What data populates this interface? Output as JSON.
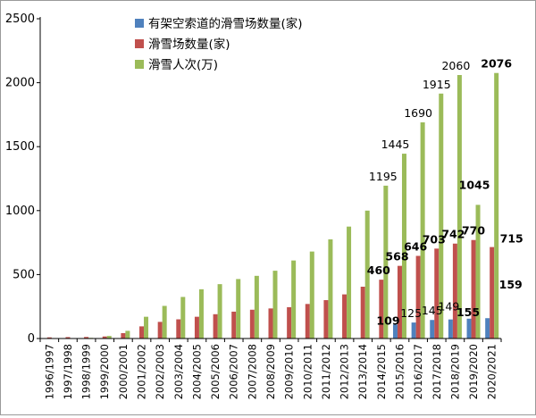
{
  "chart_data": {
    "type": "bar",
    "categories": [
      "1996/1997",
      "1997/1998",
      "1998/1999",
      "1999/2000",
      "2000/2001",
      "2001/2002",
      "2002/2003",
      "2003/2004",
      "2004/2005",
      "2005/2006",
      "2006/2007",
      "2007/2008",
      "2008/2009",
      "2009/2010",
      "2010/2011",
      "2011/2012",
      "2012/2013",
      "2013/2014",
      "2014/2015",
      "2015/2016",
      "2016/2017",
      "2017/2018",
      "2018/2019",
      "2019/2020",
      "2020/2021"
    ],
    "series": [
      {
        "name": "有架空索道的滑雪场数量(家)",
        "color": "#4f81bd",
        "values": [
          0,
          0,
          0,
          0,
          0,
          0,
          0,
          0,
          0,
          0,
          0,
          0,
          0,
          0,
          0,
          0,
          0,
          0,
          0,
          109,
          125,
          145,
          149,
          155,
          159
        ]
      },
      {
        "name": "滑雪场数量(家)",
        "color": "#c0504d",
        "values": [
          9,
          11,
          12,
          16,
          42,
          95,
          130,
          150,
          170,
          190,
          210,
          225,
          235,
          245,
          270,
          300,
          345,
          405,
          460,
          568,
          646,
          703,
          742,
          770,
          715
        ]
      },
      {
        "name": "滑雪人次(万)",
        "color": "#9bbb59",
        "values": [
          2,
          3,
          5,
          20,
          60,
          170,
          255,
          325,
          385,
          425,
          465,
          490,
          530,
          610,
          680,
          775,
          875,
          1000,
          1195,
          1445,
          1690,
          1915,
          2060,
          1045,
          2076
        ]
      }
    ],
    "data_labels": [
      {
        "series": 0,
        "index": 19,
        "text": "109",
        "bold": true
      },
      {
        "series": 0,
        "index": 20,
        "text": "125",
        "bold": false
      },
      {
        "series": 0,
        "index": 21,
        "text": "145",
        "bold": false
      },
      {
        "series": 0,
        "index": 22,
        "text": "149",
        "bold": false
      },
      {
        "series": 0,
        "index": 23,
        "text": "155",
        "bold": true
      },
      {
        "series": 0,
        "index": 24,
        "text": "159",
        "bold": true
      },
      {
        "series": 1,
        "index": 18,
        "text": "460",
        "bold": true
      },
      {
        "series": 1,
        "index": 19,
        "text": "568",
        "bold": true
      },
      {
        "series": 1,
        "index": 20,
        "text": "646",
        "bold": true
      },
      {
        "series": 1,
        "index": 21,
        "text": "703",
        "bold": true
      },
      {
        "series": 1,
        "index": 22,
        "text": "742",
        "bold": true
      },
      {
        "series": 1,
        "index": 23,
        "text": "770",
        "bold": true
      },
      {
        "series": 1,
        "index": 24,
        "text": "715",
        "bold": true
      },
      {
        "series": 2,
        "index": 18,
        "text": "1195",
        "bold": false
      },
      {
        "series": 2,
        "index": 19,
        "text": "1445",
        "bold": false
      },
      {
        "series": 2,
        "index": 20,
        "text": "1690",
        "bold": false
      },
      {
        "series": 2,
        "index": 21,
        "text": "1915",
        "bold": false
      },
      {
        "series": 2,
        "index": 22,
        "text": "2060",
        "bold": false
      },
      {
        "series": 2,
        "index": 23,
        "text": "1045",
        "bold": true
      },
      {
        "series": 2,
        "index": 24,
        "text": "2076",
        "bold": true
      }
    ],
    "ylim": [
      0,
      2500
    ],
    "yticks": [
      0,
      500,
      1000,
      1500,
      2000,
      2500
    ],
    "grid": false,
    "legend_position": "top-left"
  }
}
